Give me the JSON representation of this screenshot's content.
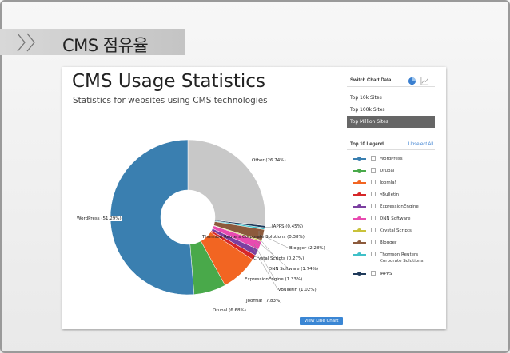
{
  "slide": {
    "title": "CMS 점유율"
  },
  "page": {
    "title": "CMS Usage Statistics",
    "subtitle": "Statistics for websites using CMS technologies"
  },
  "switch": {
    "label": "Switch Chart Data",
    "pie_icon": "pie-chart-icon",
    "line_icon": "line-chart-icon",
    "options": [
      "Top 10k Sites",
      "Top 100k Sites",
      "Top Million Sites"
    ],
    "selected": "Top Million Sites"
  },
  "legend": {
    "label": "Top 10 Legend",
    "unselect": "Unselect All",
    "items": [
      {
        "name": "WordPress",
        "color": "#3a7fb0"
      },
      {
        "name": "Drupal",
        "color": "#49a94a"
      },
      {
        "name": "Joomla!",
        "color": "#f26522"
      },
      {
        "name": "vBulletin",
        "color": "#d62728"
      },
      {
        "name": "ExpressionEngine",
        "color": "#7b3fa0"
      },
      {
        "name": "DNN Software",
        "color": "#e84ab0"
      },
      {
        "name": "Crystal Scripts",
        "color": "#c9c23a"
      },
      {
        "name": "Blogger",
        "color": "#8c5a3c"
      },
      {
        "name": "Thomson Reuters Corporate Solutions",
        "color": "#3fc0c8"
      },
      {
        "name": "IAPPS",
        "color": "#1f3a5a"
      }
    ]
  },
  "chart_data": {
    "type": "pie",
    "title": "CMS Usage Statistics",
    "slices": [
      {
        "name": "Other",
        "value": 26.74,
        "label": "Other (26.74%)",
        "color": "#c8c8c8"
      },
      {
        "name": "IAPPS",
        "value": 0.45,
        "label": "IAPPS (0.45%)",
        "color": "#1f3a5a"
      },
      {
        "name": "Thomson Reuters Corporate Solutions",
        "value": 0.38,
        "label": "Thomson Reuters Corporate Solutions (0.38%)",
        "color": "#3fc0c8"
      },
      {
        "name": "Blogger",
        "value": 2.28,
        "label": "Blogger (2.28%)",
        "color": "#8c5a3c"
      },
      {
        "name": "Crystal Scripts",
        "value": 0.27,
        "label": "Crystal Scripts (0.27%)",
        "color": "#c9c23a"
      },
      {
        "name": "DNN Software",
        "value": 1.74,
        "label": "DNN Software (1.74%)",
        "color": "#e84ab0"
      },
      {
        "name": "ExpressionEngine",
        "value": 1.33,
        "label": "ExpressionEngine (1.33%)",
        "color": "#7b3fa0"
      },
      {
        "name": "vBulletin",
        "value": 1.02,
        "label": "vBulletin (1.02%)",
        "color": "#d62728"
      },
      {
        "name": "Joomla!",
        "value": 7.83,
        "label": "Joomla! (7.83%)",
        "color": "#f26522"
      },
      {
        "name": "Drupal",
        "value": 6.68,
        "label": "Drupal (6.68%)",
        "color": "#49a94a"
      },
      {
        "name": "WordPress",
        "value": 51.29,
        "label": "WordPress (51.29%)",
        "color": "#3a7fb0"
      }
    ]
  },
  "actions": {
    "view_line_chart": "View Line Chart"
  }
}
